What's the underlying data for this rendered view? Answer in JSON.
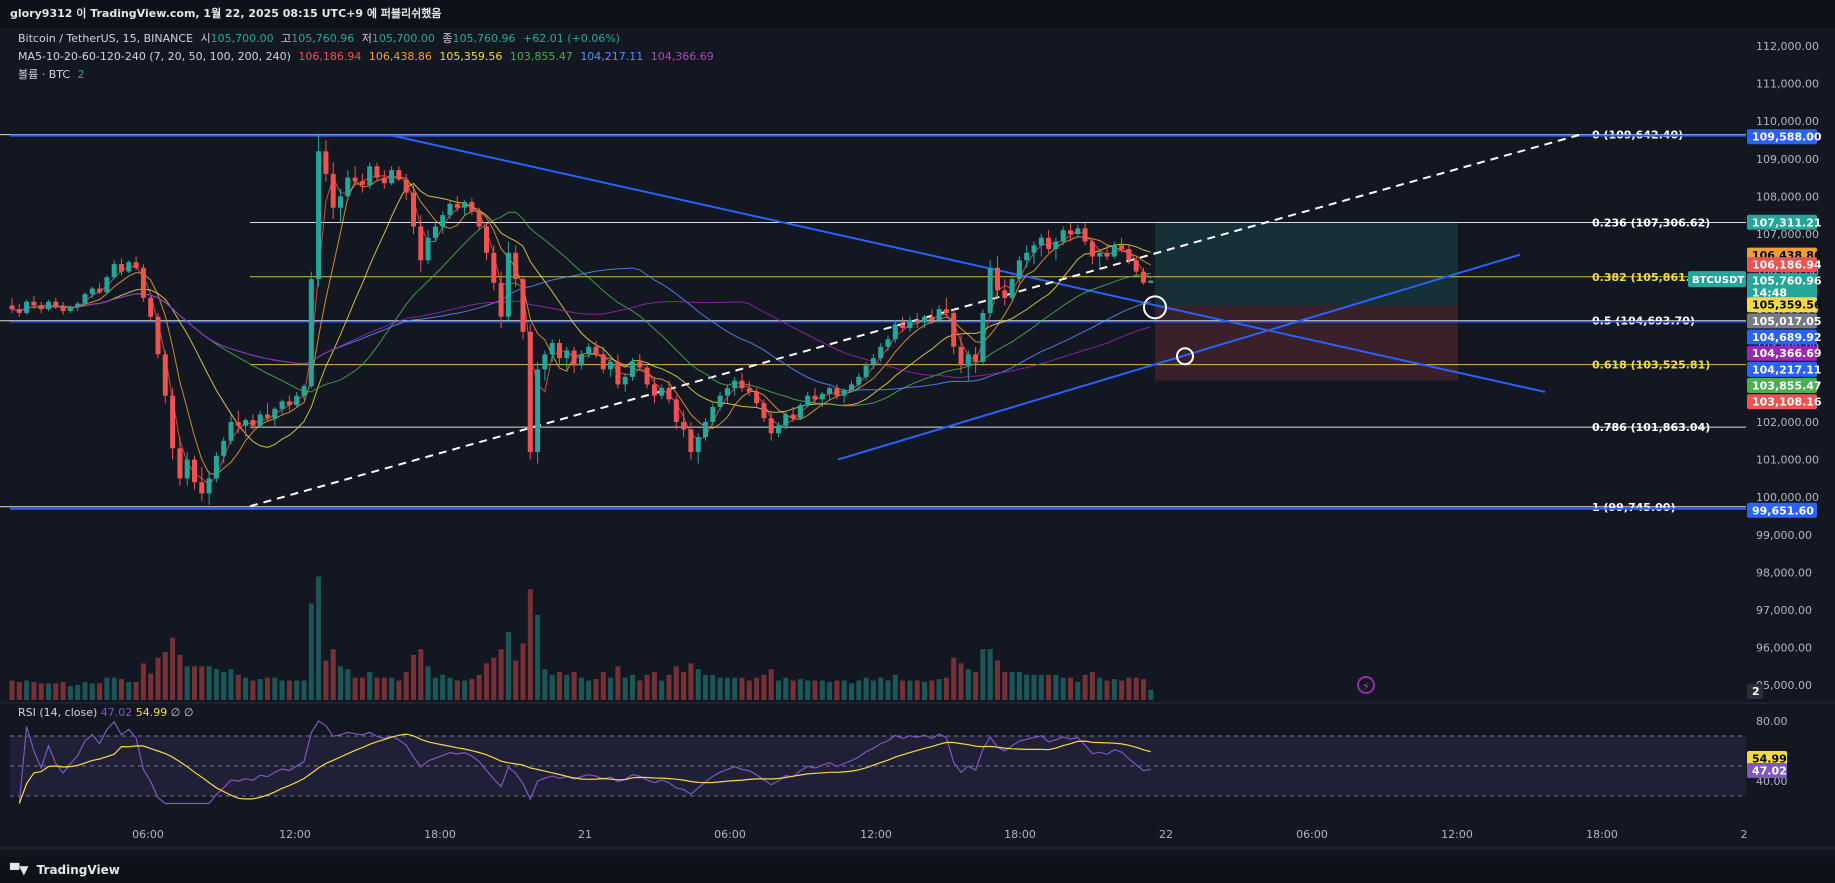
{
  "header": {
    "title": "glory9312 이 TradingView.com, 1월 22, 2025 08:15 UTC+9 에 퍼블리쉬했음"
  },
  "legend": {
    "symbol": "Bitcoin / TetherUS, 15, BINANCE",
    "o_label": "시",
    "o": "105,700.00",
    "h_label": "고",
    "h": "105,760.96",
    "l_label": "저",
    "l": "105,700.00",
    "c_label": "종",
    "c": "105,760.96",
    "chg": "+62.01 (+0.06%)",
    "ma_label": "MA5-10-20-60-120-240 (7, 20, 50, 100, 200, 240)",
    "ma_values": [
      "106,186.94",
      "106,438.86",
      "105,359.56",
      "103,855.47",
      "104,217.11",
      "104,366.69"
    ],
    "vol_label": "볼륨 · BTC",
    "vol_value": "2"
  },
  "rsi_legend": {
    "label": "RSI (14, close)",
    "v1": "47.02",
    "v2": "54.99",
    "z1": "∅",
    "z2": "∅"
  },
  "footer": {
    "brand": "TradingView"
  },
  "colors": {
    "bg": "#131722",
    "up": "#26a69a",
    "down": "#ef5350",
    "trend": "#2962ff",
    "ma": [
      "#ef5350",
      "#f0a030",
      "#f5d84a",
      "#4caf50",
      "#5b8dff",
      "#9c27b0"
    ]
  },
  "chart_data": {
    "type": "candlestick",
    "symbol": "BTCUSDT",
    "timeframe": "15",
    "y_ticks": [
      "112,000.00",
      "111,000.00",
      "110,000.00",
      "109,000.00",
      "108,000.00",
      "107,000.00",
      "106,000.00",
      "105,000.00",
      "104,000.00",
      "103,000.00",
      "102,000.00",
      "101,000.00",
      "100,000.00",
      "99,000.00",
      "98,000.00",
      "97,000.00",
      "96,000.00",
      "95,000.00"
    ],
    "y_range": [
      94800,
      112500
    ],
    "x_ticks": [
      "06:00",
      "12:00",
      "18:00",
      "21",
      "06:00",
      "12:00",
      "18:00",
      "22",
      "06:00",
      "12:00",
      "18:00",
      "2"
    ],
    "fib_levels": [
      {
        "label": "0 (109,642.40)",
        "price": 109642.4,
        "color": "#ffffff"
      },
      {
        "label": "0.236 (107,306.62)",
        "price": 107306.62,
        "color": "#ffffff"
      },
      {
        "label": "0.382 (105,861.60)",
        "price": 105861.6,
        "color": "#f5d84a"
      },
      {
        "label": "0.5 (104,693.70)",
        "price": 104693.7,
        "color": "#ffffff"
      },
      {
        "label": "0.618 (103,525.81)",
        "price": 103525.81,
        "color": "#f5d84a"
      },
      {
        "label": "0.786 (101,863.04)",
        "price": 101863.04,
        "color": "#ffffff"
      },
      {
        "label": "1 (99,745.00)",
        "price": 99745.0,
        "color": "#ffffff"
      }
    ],
    "price_badges": [
      {
        "text": "109,588.00",
        "price": 109588,
        "bg": "#2962ff",
        "fg": "#ffffff"
      },
      {
        "text": "107,311.21",
        "price": 107311,
        "bg": "#26a69a",
        "fg": "#ffffff"
      },
      {
        "text": "106,438.86",
        "price": 106439,
        "bg": "#f0a030",
        "fg": "#000000"
      },
      {
        "text": "106,186.94",
        "price": 106187,
        "bg": "#ef5350",
        "fg": "#ffffff"
      },
      {
        "text": "105,760.96",
        "price": 105761,
        "bg": "#26a69a",
        "fg": "#ffffff"
      },
      {
        "text": "14:48",
        "price": 105440,
        "bg": "#26a69a",
        "fg": "#ffffff"
      },
      {
        "text": "105,359.56",
        "price": 105120,
        "bg": "#f5d84a",
        "fg": "#000000"
      },
      {
        "text": "105,017.05",
        "price": 104690,
        "bg": "#787b86",
        "fg": "#ffffff"
      },
      {
        "text": "104,689.92",
        "price": 104260,
        "bg": "#2962ff",
        "fg": "#ffffff"
      },
      {
        "text": "104,366.69",
        "price": 103830,
        "bg": "#9c27b0",
        "fg": "#ffffff"
      },
      {
        "text": "104,217.11",
        "price": 103400,
        "bg": "#2962ff",
        "fg": "#ffffff"
      },
      {
        "text": "103,855.47",
        "price": 102970,
        "bg": "#4caf50",
        "fg": "#ffffff"
      },
      {
        "text": "103,108.16",
        "price": 102540,
        "bg": "#ef5350",
        "fg": "#ffffff"
      },
      {
        "text": "99,651.60",
        "price": 99652,
        "bg": "#2962ff",
        "fg": "#ffffff"
      }
    ],
    "symbol_tag": "BTCUSDT",
    "vol_badge": "2",
    "candles": [
      [
        0,
        105100,
        105300,
        104900,
        105000
      ],
      [
        1,
        105000,
        105150,
        104800,
        104900
      ],
      [
        2,
        104900,
        105250,
        104850,
        105200
      ],
      [
        3,
        105200,
        105350,
        105000,
        105100
      ],
      [
        4,
        105100,
        105200,
        104900,
        105000
      ],
      [
        5,
        105000,
        105250,
        104950,
        105200
      ],
      [
        6,
        105200,
        105300,
        105000,
        105050
      ],
      [
        7,
        105050,
        105200,
        104850,
        104950
      ],
      [
        8,
        104950,
        105100,
        104900,
        105050
      ],
      [
        9,
        105050,
        105200,
        104950,
        105150
      ],
      [
        10,
        105150,
        105450,
        105100,
        105400
      ],
      [
        11,
        105400,
        105600,
        105300,
        105550
      ],
      [
        12,
        105550,
        105700,
        105400,
        105450
      ],
      [
        13,
        105450,
        105900,
        105400,
        105850
      ],
      [
        14,
        105850,
        106300,
        105800,
        106200
      ],
      [
        15,
        106200,
        106350,
        105900,
        106000
      ],
      [
        16,
        106000,
        106300,
        105950,
        106250
      ],
      [
        17,
        106250,
        106400,
        106050,
        106100
      ],
      [
        18,
        106100,
        106200,
        105200,
        105300
      ],
      [
        19,
        105300,
        105350,
        104700,
        104800
      ],
      [
        20,
        104800,
        104900,
        103700,
        103800
      ],
      [
        21,
        103800,
        103900,
        102500,
        102700
      ],
      [
        22,
        102700,
        102900,
        101000,
        101300
      ],
      [
        23,
        101300,
        101600,
        100300,
        100500
      ],
      [
        24,
        100500,
        101200,
        100300,
        101000
      ],
      [
        25,
        101000,
        101100,
        100200,
        100400
      ],
      [
        26,
        100400,
        100800,
        99900,
        100100
      ],
      [
        27,
        100100,
        100700,
        99800,
        100500
      ],
      [
        28,
        100500,
        101200,
        100400,
        101100
      ],
      [
        29,
        101100,
        101600,
        100900,
        101500
      ],
      [
        30,
        101500,
        102200,
        101400,
        102000
      ],
      [
        31,
        102000,
        102300,
        101700,
        101900
      ],
      [
        32,
        101900,
        102100,
        101600,
        102050
      ],
      [
        33,
        102050,
        102200,
        101800,
        101900
      ],
      [
        34,
        101900,
        102300,
        101850,
        102200
      ],
      [
        35,
        102200,
        102500,
        102000,
        102100
      ],
      [
        36,
        102100,
        102400,
        101900,
        102350
      ],
      [
        37,
        102350,
        102600,
        102200,
        102550
      ],
      [
        38,
        102550,
        102700,
        102300,
        102450
      ],
      [
        39,
        102450,
        102800,
        102400,
        102700
      ],
      [
        40,
        102700,
        103000,
        102600,
        102950
      ],
      [
        41,
        102950,
        106000,
        102900,
        105800
      ],
      [
        42,
        105800,
        109642,
        105600,
        109200
      ],
      [
        43,
        109200,
        109500,
        108400,
        108600
      ],
      [
        44,
        108600,
        108900,
        107400,
        107700
      ],
      [
        45,
        107700,
        108200,
        107300,
        108000
      ],
      [
        46,
        108000,
        108700,
        107900,
        108500
      ],
      [
        47,
        108500,
        108800,
        108300,
        108400
      ],
      [
        48,
        108400,
        108600,
        108100,
        108300
      ],
      [
        49,
        108300,
        108900,
        108200,
        108800
      ],
      [
        50,
        108800,
        108900,
        108400,
        108500
      ],
      [
        51,
        108500,
        108700,
        108200,
        108350
      ],
      [
        52,
        108350,
        108800,
        108300,
        108700
      ],
      [
        53,
        108700,
        108800,
        108400,
        108450
      ],
      [
        54,
        108450,
        108600,
        107900,
        108100
      ],
      [
        55,
        108100,
        108300,
        107000,
        107200
      ],
      [
        56,
        107200,
        107500,
        106000,
        106300
      ],
      [
        57,
        106300,
        107100,
        106200,
        106900
      ],
      [
        58,
        106900,
        107300,
        106800,
        107200
      ],
      [
        59,
        107200,
        107600,
        107000,
        107500
      ],
      [
        60,
        107500,
        107900,
        107400,
        107800
      ],
      [
        61,
        107800,
        108000,
        107600,
        107700
      ],
      [
        62,
        107700,
        107900,
        107500,
        107850
      ],
      [
        63,
        107850,
        107950,
        107500,
        107600
      ],
      [
        64,
        107600,
        107700,
        107100,
        107200
      ],
      [
        65,
        107200,
        107300,
        106300,
        106500
      ],
      [
        66,
        106500,
        106700,
        105500,
        105700
      ],
      [
        67,
        105700,
        106000,
        104500,
        104800
      ],
      [
        68,
        104800,
        106800,
        104700,
        106500
      ],
      [
        69,
        106500,
        106700,
        105600,
        105800
      ],
      [
        70,
        105800,
        105900,
        104200,
        104400
      ],
      [
        71,
        104400,
        104600,
        101000,
        101200
      ],
      [
        72,
        101200,
        103600,
        100900,
        103400
      ],
      [
        73,
        103400,
        103900,
        103100,
        103800
      ],
      [
        74,
        103800,
        104200,
        103600,
        104100
      ],
      [
        75,
        104100,
        104200,
        103500,
        103700
      ],
      [
        76,
        103700,
        104000,
        103400,
        103900
      ],
      [
        77,
        103900,
        104000,
        103300,
        103500
      ],
      [
        78,
        103500,
        103900,
        103400,
        103800
      ],
      [
        79,
        103800,
        104100,
        103700,
        104000
      ],
      [
        80,
        104000,
        104150,
        103700,
        103800
      ],
      [
        81,
        103800,
        104000,
        103300,
        103400
      ],
      [
        82,
        103400,
        103700,
        103200,
        103600
      ],
      [
        83,
        103600,
        103800,
        102900,
        103000
      ],
      [
        84,
        103000,
        103300,
        102800,
        103200
      ],
      [
        85,
        103200,
        103700,
        103100,
        103600
      ],
      [
        86,
        103600,
        103800,
        103400,
        103450
      ],
      [
        87,
        103450,
        103500,
        102900,
        103000
      ],
      [
        88,
        103000,
        103200,
        102500,
        102700
      ],
      [
        89,
        102700,
        103000,
        102600,
        102900
      ],
      [
        90,
        102900,
        103100,
        102500,
        102600
      ],
      [
        91,
        102600,
        102700,
        101800,
        102000
      ],
      [
        92,
        102000,
        102300,
        101600,
        101800
      ],
      [
        93,
        101800,
        102000,
        101000,
        101200
      ],
      [
        94,
        101200,
        101700,
        100900,
        101600
      ],
      [
        95,
        101600,
        102100,
        101500,
        102000
      ],
      [
        96,
        102000,
        102500,
        101900,
        102400
      ],
      [
        97,
        102400,
        102800,
        102300,
        102700
      ],
      [
        98,
        102700,
        103000,
        102500,
        102900
      ],
      [
        99,
        102900,
        103200,
        102700,
        103100
      ],
      [
        100,
        103100,
        103300,
        102800,
        102900
      ],
      [
        101,
        102900,
        103100,
        102700,
        102800
      ],
      [
        102,
        102800,
        102900,
        102400,
        102500
      ],
      [
        103,
        102500,
        102600,
        102000,
        102100
      ],
      [
        104,
        102100,
        102300,
        101500,
        101700
      ],
      [
        105,
        101700,
        102000,
        101600,
        101900
      ],
      [
        106,
        101900,
        102300,
        101800,
        102200
      ],
      [
        107,
        102200,
        102400,
        102000,
        102100
      ],
      [
        108,
        102100,
        102500,
        102050,
        102450
      ],
      [
        109,
        102450,
        102800,
        102400,
        102700
      ],
      [
        110,
        102700,
        102900,
        102500,
        102600
      ],
      [
        111,
        102600,
        102800,
        102400,
        102750
      ],
      [
        112,
        102750,
        102950,
        102600,
        102900
      ],
      [
        113,
        102900,
        103000,
        102600,
        102700
      ],
      [
        114,
        102700,
        102900,
        102500,
        102850
      ],
      [
        115,
        102850,
        103100,
        102800,
        103000
      ],
      [
        116,
        103000,
        103300,
        102900,
        103200
      ],
      [
        117,
        103200,
        103600,
        103100,
        103500
      ],
      [
        118,
        103500,
        103800,
        103400,
        103700
      ],
      [
        119,
        103700,
        104100,
        103600,
        104000
      ],
      [
        120,
        104000,
        104300,
        103900,
        104200
      ],
      [
        121,
        104200,
        104700,
        104100,
        104600
      ],
      [
        122,
        104600,
        104800,
        104400,
        104500
      ],
      [
        123,
        104500,
        104800,
        104400,
        104700
      ],
      [
        124,
        104700,
        104900,
        104500,
        104650
      ],
      [
        125,
        104650,
        104850,
        104500,
        104800
      ],
      [
        126,
        104800,
        105000,
        104600,
        104700
      ],
      [
        127,
        104700,
        105100,
        104650,
        105000
      ],
      [
        128,
        105000,
        105300,
        104800,
        104900
      ],
      [
        129,
        104900,
        105000,
        103800,
        104000
      ],
      [
        130,
        104000,
        104300,
        103300,
        103500
      ],
      [
        131,
        103500,
        103900,
        103100,
        103800
      ],
      [
        132,
        103800,
        104000,
        103300,
        103600
      ],
      [
        133,
        103600,
        105000,
        103500,
        104900
      ],
      [
        134,
        104900,
        106300,
        104800,
        106100
      ],
      [
        135,
        106100,
        106400,
        105300,
        105500
      ],
      [
        136,
        105500,
        105800,
        105100,
        105300
      ],
      [
        137,
        105300,
        105900,
        105200,
        105800
      ],
      [
        138,
        105800,
        106400,
        105700,
        106300
      ],
      [
        139,
        106300,
        106700,
        106100,
        106500
      ],
      [
        140,
        106500,
        106800,
        106200,
        106700
      ],
      [
        141,
        106700,
        107000,
        106400,
        106900
      ],
      [
        142,
        106900,
        107100,
        106500,
        106600
      ],
      [
        143,
        106600,
        106900,
        106300,
        106800
      ],
      [
        144,
        106800,
        107200,
        106700,
        107100
      ],
      [
        145,
        107100,
        107300,
        106800,
        107000
      ],
      [
        146,
        107000,
        107250,
        106900,
        107150
      ],
      [
        147,
        107150,
        107300,
        106700,
        106800
      ],
      [
        148,
        106800,
        106900,
        106200,
        106400
      ],
      [
        149,
        106400,
        106600,
        106100,
        106500
      ],
      [
        150,
        106500,
        106700,
        106300,
        106400
      ],
      [
        151,
        106400,
        106800,
        106350,
        106700
      ],
      [
        152,
        106700,
        106900,
        106500,
        106600
      ],
      [
        153,
        106600,
        106700,
        106200,
        106300
      ],
      [
        154,
        106300,
        106400,
        105900,
        106000
      ],
      [
        155,
        106000,
        106100,
        105650,
        105700
      ],
      [
        156,
        105700,
        105770,
        105690,
        105761
      ]
    ]
  }
}
